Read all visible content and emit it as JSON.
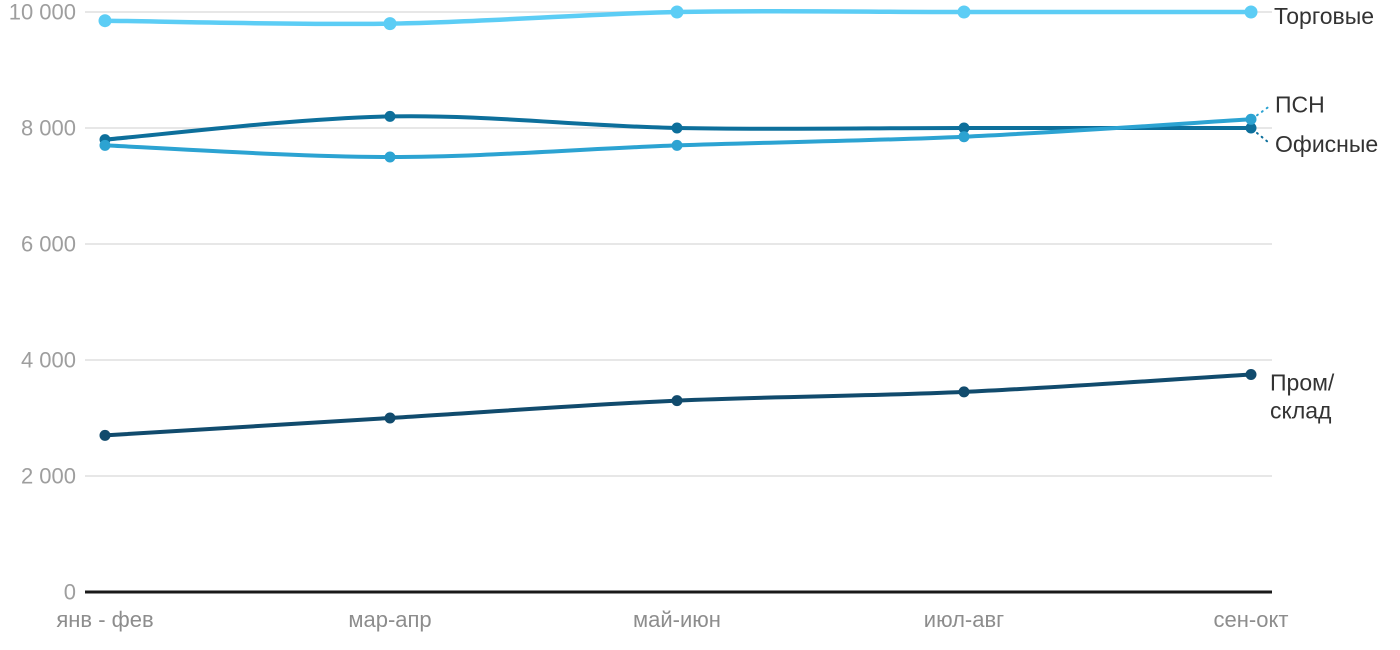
{
  "chart_data": {
    "type": "line",
    "title": "",
    "categories": [
      "янв - фев",
      "мар-апр",
      "май-июн",
      "июл-авг",
      "сен-окт"
    ],
    "series": [
      {
        "name": "Торговые",
        "values": [
          9850,
          9800,
          10000,
          10000,
          10000
        ],
        "color": "#5CCDF5"
      },
      {
        "name": "Офисные",
        "values": [
          7800,
          8200,
          8000,
          8000,
          8000
        ],
        "color": "#0D6F9B"
      },
      {
        "name": "ПСН",
        "values": [
          7700,
          7500,
          7700,
          7850,
          8150
        ],
        "color": "#2CA3D2"
      },
      {
        "name": "Пром/склад",
        "values": [
          2700,
          3000,
          3300,
          3450,
          3750
        ],
        "color": "#114B6D",
        "label_lines": [
          "Пром/",
          "склад"
        ]
      }
    ],
    "ylim": [
      0,
      10000
    ],
    "yticks": [
      {
        "value": 0,
        "label": "0"
      },
      {
        "value": 2000,
        "label": "2 000"
      },
      {
        "value": 4000,
        "label": "4 000"
      },
      {
        "value": 6000,
        "label": "6 000"
      },
      {
        "value": 8000,
        "label": "8 000"
      },
      {
        "value": 10000,
        "label": "10 000"
      }
    ],
    "grid": true,
    "legend_position": "right-inline-labels",
    "colors": {
      "background": "#FFFFFF",
      "grid": "#E7E7E7",
      "axis": "#1A1A1A",
      "ytick_label": "#9E9E9E",
      "xtick_label": "#8D8D8D",
      "series_label": "#333333"
    }
  }
}
